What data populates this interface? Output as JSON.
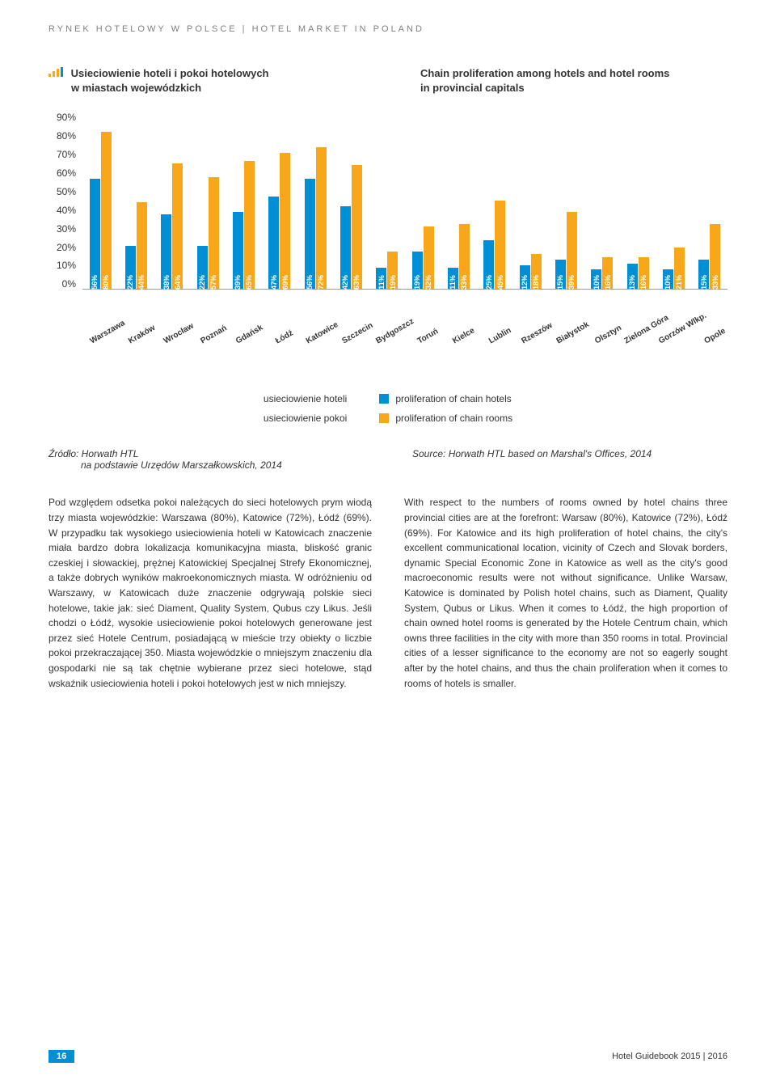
{
  "header": "RYNEK HOTELOWY W POLSCE | HOTEL MARKET IN POLAND",
  "titles": {
    "left1": "Usieciowienie hoteli i pokoi hotelowych",
    "left2": "w miastach wojewódzkich",
    "right1": "Chain proliferation among hotels and hotel rooms",
    "right2": "in provincial capitals"
  },
  "chart": {
    "ymax": 90,
    "ytick_labels": [
      "90%",
      "80%",
      "70%",
      "60%",
      "50%",
      "40%",
      "30%",
      "20%",
      "10%",
      "0%"
    ],
    "colors": {
      "hotels": "#008fd5",
      "rooms": "#f8a61a"
    },
    "data": [
      {
        "city": "Warszawa",
        "hotels": 56,
        "rooms": 80
      },
      {
        "city": "Kraków",
        "hotels": 22,
        "rooms": 44
      },
      {
        "city": "Wrocław",
        "hotels": 38,
        "rooms": 64
      },
      {
        "city": "Poznań",
        "hotels": 22,
        "rooms": 57
      },
      {
        "city": "Gdańsk",
        "hotels": 39,
        "rooms": 65
      },
      {
        "city": "Łódź",
        "hotels": 47,
        "rooms": 69
      },
      {
        "city": "Katowice",
        "hotels": 56,
        "rooms": 72
      },
      {
        "city": "Szczecin",
        "hotels": 42,
        "rooms": 63
      },
      {
        "city": "Bydgoszcz",
        "hotels": 11,
        "rooms": 19
      },
      {
        "city": "Toruń",
        "hotels": 19,
        "rooms": 32
      },
      {
        "city": "Kielce",
        "hotels": 11,
        "rooms": 33
      },
      {
        "city": "Lublin",
        "hotels": 25,
        "rooms": 45
      },
      {
        "city": "Rzeszów",
        "hotels": 12,
        "rooms": 18
      },
      {
        "city": "Białystok",
        "hotels": 15,
        "rooms": 39
      },
      {
        "city": "Olsztyn",
        "hotels": 10,
        "rooms": 16
      },
      {
        "city": "Zielona Góra",
        "hotels": 13,
        "rooms": 16
      },
      {
        "city": "Gorzów Wlkp.",
        "hotels": 10,
        "rooms": 21
      },
      {
        "city": "Opole",
        "hotels": 15,
        "rooms": 33
      }
    ]
  },
  "legend": {
    "l1": "usieciowienie hoteli",
    "l2": "usieciowienie pokoi",
    "r1": "proliferation of chain hotels",
    "r2": "proliferation of chain rooms"
  },
  "source": {
    "left1": "Źródło: Horwath HTL",
    "left2": "na podstawie Urzędów Marszałkowskich, 2014",
    "right": "Source: Horwath HTL based on Marshal's Offices, 2014"
  },
  "body": {
    "left": "Pod względem odsetka pokoi należących do sieci hotelowych prym wiodą trzy miasta wojewódzkie: Warszawa (80%), Katowice (72%), Łódź (69%). W przypadku tak wysokiego usieciowienia hoteli w Katowicach znaczenie miała bardzo dobra lokalizacja komunikacyjna miasta, bliskość granic czeskiej i słowackiej, prężnej Katowickiej Specjalnej Strefy Ekonomicznej, a także dobrych wyników makroekonomicznych miasta. W odróżnieniu od Warszawy, w Katowicach duże znaczenie odgrywają polskie sieci hotelowe, takie jak: sieć Diament, Quality System, Qubus czy Likus. Jeśli chodzi o Łódź, wysokie usieciowienie pokoi hotelowych generowane jest przez sieć Hotele Centrum, posiadającą w mieście trzy obiekty o liczbie pokoi przekraczającej 350. Miasta wojewódzkie o mniejszym znaczeniu dla gospodarki nie są tak chętnie wybierane przez sieci hotelowe, stąd wskaźnik usieciowienia hoteli i pokoi hotelowych jest w nich mniejszy.",
    "right": "With respect to the numbers of rooms owned by hotel chains three provincial cities are at the forefront: Warsaw (80%), Katowice (72%), Łódź (69%). For Katowice and its high proliferation of hotel chains, the city's excellent communicational location, vicinity of Czech and Slovak borders, dynamic Special Economic Zone in Katowice as well as the city's good macroeconomic results were not without significance. Unlike Warsaw, Katowice is dominated by Polish hotel chains, such as Diament, Quality System, Qubus or Likus. When it comes to Łódź, the high proportion of chain owned hotel rooms is generated by the Hotele Centrum chain, which owns three facilities in the city with more than 350 rooms in total. Provincial cities of a lesser significance to the economy are not so eagerly sought after by the hotel chains, and thus the chain proliferation when it comes to rooms of hotels is smaller."
  },
  "footer": {
    "page": "16",
    "book": "Hotel Guidebook 2015 | 2016"
  }
}
